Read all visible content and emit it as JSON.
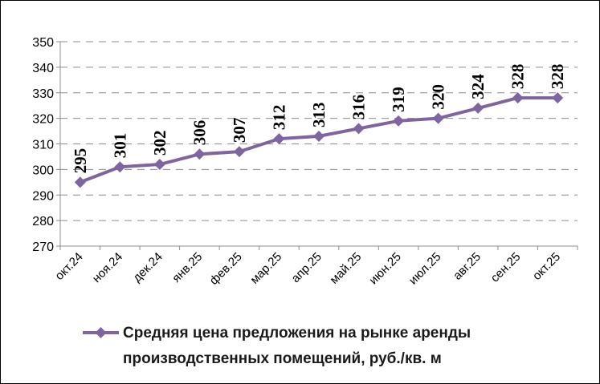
{
  "chart_data": {
    "type": "line",
    "categories": [
      "окт.24",
      "ноя.24",
      "дек.24",
      "янв.25",
      "фев.25",
      "мар.25",
      "апр.25",
      "май.25",
      "июн.25",
      "июл.25",
      "авг.25",
      "сен.25",
      "окт.25"
    ],
    "series": [
      {
        "name": "Средняя цена предложения на рынке аренды производственных помещений,  руб./кв. м",
        "name_lines": [
          "Средняя цена предложения на рынке аренды",
          "производственных помещений,  руб./кв. м"
        ],
        "values": [
          295,
          301,
          302,
          306,
          307,
          312,
          313,
          316,
          319,
          320,
          324,
          328,
          328
        ],
        "labels": [
          "295",
          "301",
          "302",
          "306",
          "307",
          "312",
          "313",
          "316",
          "319",
          "320",
          "324",
          "328",
          "328"
        ],
        "color": "#7f65a0"
      }
    ],
    "ylim": [
      270,
      350
    ],
    "yticks": [
      "270",
      "280",
      "290",
      "300",
      "310",
      "320",
      "330",
      "340",
      "350"
    ],
    "ytick_values": [
      270,
      280,
      290,
      300,
      310,
      320,
      330,
      340,
      350
    ],
    "grid": "horizontal-dashed",
    "legend_position": "bottom",
    "title": "",
    "xlabel": "",
    "ylabel": ""
  }
}
